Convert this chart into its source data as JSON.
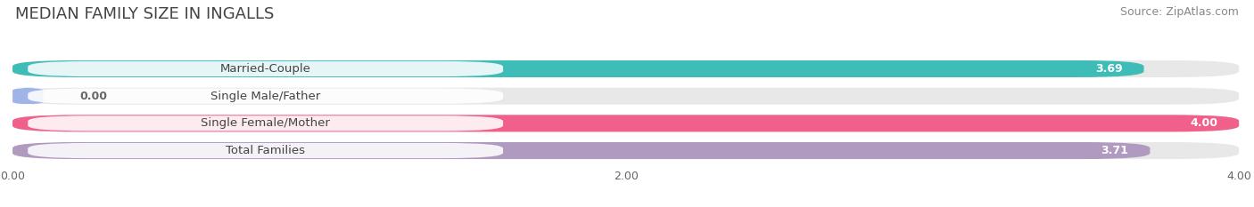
{
  "title": "MEDIAN FAMILY SIZE IN INGALLS",
  "source": "Source: ZipAtlas.com",
  "categories": [
    "Married-Couple",
    "Single Male/Father",
    "Single Female/Mother",
    "Total Families"
  ],
  "values": [
    3.69,
    0.0,
    4.0,
    3.71
  ],
  "bar_colors": [
    "#3dbcb8",
    "#a0b4e8",
    "#f0608a",
    "#b09abf"
  ],
  "xlim": [
    0,
    4.0
  ],
  "xticks": [
    0.0,
    2.0,
    4.0
  ],
  "xtick_labels": [
    "0.00",
    "2.00",
    "4.00"
  ],
  "background_color": "#ffffff",
  "bar_bg_color": "#e8e8e8",
  "title_fontsize": 13,
  "source_fontsize": 9,
  "label_fontsize": 9.5,
  "value_fontsize": 9
}
